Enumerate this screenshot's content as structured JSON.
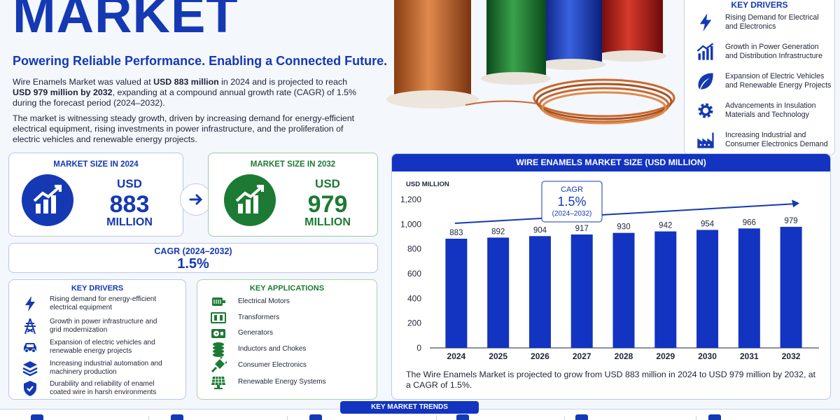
{
  "header": {
    "title": "MARKET",
    "tagline": "Powering Reliable Performance. Enabling a Connected Future."
  },
  "intro": {
    "p1_a": "Wire Enamels Market was valued at ",
    "p1_b": "USD 883 million",
    "p1_c": " in 2024 and is projected to reach ",
    "p1_d": "USD 979 million by 2032",
    "p1_e": ", expanding at a compound annual growth rate (CAGR) of 1.5% during the forecast period (2024–2032).",
    "p2": "The market is witnessing steady growth, driven by increasing demand for energy-efficient electrical equipment, rising investments in power infrastructure, and the proliferation of electric vehicles and renewable energy projects."
  },
  "key_drivers_right": {
    "title": "KEY DRIVERS",
    "items": [
      {
        "icon": "lightning-bolt-icon",
        "text": "Rising Demand for Electrical and Electronics"
      },
      {
        "icon": "growth-chart-icon",
        "text": "Growth in Power Generation and Distribution Infrastructure"
      },
      {
        "icon": "leaf-icon",
        "text": "Expansion of Electric Vehicles and Renewable Energy Projects"
      },
      {
        "icon": "gear-icon",
        "text": "Advancements in Insulation Materials and Technology"
      },
      {
        "icon": "factory-icon",
        "text": "Increasing Industrial and Consumer Electronics Demand"
      }
    ]
  },
  "market_2024": {
    "title": "MARKET SIZE IN 2024",
    "currency": "USD",
    "value": "883",
    "unit": "MILLION",
    "color": "#1539b3"
  },
  "market_2032": {
    "title": "MARKET SIZE IN 2032",
    "currency": "USD",
    "value": "979",
    "unit": "MILLION",
    "color": "#1d7a34"
  },
  "cagr": {
    "label": "CAGR (2024–2032)",
    "value": "1.5%"
  },
  "key_drivers_left": {
    "title": "KEY DRIVERS",
    "items": [
      {
        "icon": "lightning-bolt-icon",
        "text": "Rising demand for energy-efficient electrical equipment"
      },
      {
        "icon": "transmission-tower-icon",
        "text": "Growth in power infrastructure and grid modernization"
      },
      {
        "icon": "car-icon",
        "text": "Expansion of electric vehicles and renewable energy projects"
      },
      {
        "icon": "layers-icon",
        "text": "Increasing industrial automation and machinery production"
      },
      {
        "icon": "shield-icon",
        "text": "Durability and reliability of enamel coated wire in harsh environments"
      }
    ]
  },
  "key_applications": {
    "title": "KEY APPLICATIONS",
    "items": [
      {
        "icon": "motor-icon",
        "text": "Electrical Motors"
      },
      {
        "icon": "transformer-icon",
        "text": "Transformers"
      },
      {
        "icon": "generator-icon",
        "text": "Generators"
      },
      {
        "icon": "inductor-coil-icon",
        "text": "Inductors and Chokes"
      },
      {
        "icon": "plug-icon",
        "text": "Consumer Electronics"
      },
      {
        "icon": "solar-panel-icon",
        "text": "Renewable Energy Systems"
      }
    ]
  },
  "chart_header": "WIRE ENAMELS MARKET SIZE (USD MILLION)",
  "chart_note": "The Wire Enamels Market is projected to grow from USD 883 million in 2024 to USD 979 million by 2032, at a CAGR of 1.5%.",
  "chart_data": {
    "type": "bar",
    "title": "WIRE ENAMELS MARKET SIZE (USD MILLION)",
    "ylabel": "USD MILLION",
    "xlabel": "",
    "categories": [
      "2024",
      "2025",
      "2026",
      "2027",
      "2028",
      "2029",
      "2030",
      "2031",
      "2032"
    ],
    "values": [
      883,
      892,
      904,
      917,
      930,
      942,
      954,
      966,
      979
    ],
    "ylim": [
      0,
      1200
    ],
    "yticks": [
      "0",
      "200",
      "400",
      "600",
      "800",
      "1,000",
      "1,200"
    ],
    "annotation": {
      "label": "CAGR",
      "value": "1.5%",
      "period": "(2024–2032)"
    },
    "bar_color": "#1234c0",
    "grid": false
  },
  "trends": {
    "label": "KEY MARKET TRENDS"
  },
  "colors": {
    "primary": "#1539b3",
    "green": "#1d7a34",
    "copper": "#c8692f"
  }
}
